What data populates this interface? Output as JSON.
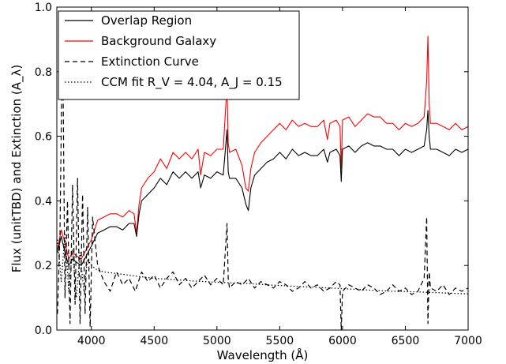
{
  "chart_data": {
    "type": "line",
    "xlabel": "Wavelength (Å)",
    "ylabel": "Flux (unitTBD) and Extinction (A_λ)",
    "xlim": [
      3725,
      7000
    ],
    "ylim": [
      0.0,
      1.0
    ],
    "x_ticks": [
      "4000",
      "4500",
      "5000",
      "5500",
      "6000",
      "6500",
      "7000"
    ],
    "y_ticks": [
      "0.0",
      "0.2",
      "0.4",
      "0.6",
      "0.8",
      "1.0"
    ],
    "grid": false,
    "legend_position": "top-left",
    "legend": [
      {
        "label": "Overlap Region",
        "style": "solid",
        "color": "#000000"
      },
      {
        "label": "Background Galaxy",
        "style": "solid",
        "color": "#ff0000"
      },
      {
        "label": "Extinction Curve",
        "style": "dashed",
        "color": "#000000"
      },
      {
        "label": "CCM fit R_V = 4.04, A_J = 0.15",
        "style": "dotted",
        "color": "#000000"
      }
    ],
    "series": [
      {
        "name": "Background Galaxy",
        "color": "#ff0000",
        "style": "solid",
        "x": [
          3730,
          3760,
          3790,
          3820,
          3850,
          3880,
          3920,
          3960,
          4000,
          4050,
          4100,
          4150,
          4200,
          4250,
          4300,
          4340,
          4360,
          4380,
          4400,
          4450,
          4500,
          4550,
          4600,
          4650,
          4700,
          4750,
          4800,
          4850,
          4870,
          4900,
          4950,
          5000,
          5050,
          5080,
          5090,
          5100,
          5150,
          5200,
          5230,
          5250,
          5270,
          5300,
          5350,
          5400,
          5450,
          5500,
          5550,
          5600,
          5650,
          5700,
          5750,
          5800,
          5850,
          5880,
          5900,
          5950,
          5980,
          5990,
          6000,
          6050,
          6100,
          6150,
          6200,
          6250,
          6300,
          6350,
          6400,
          6450,
          6500,
          6550,
          6600,
          6650,
          6670,
          6680,
          6690,
          6700,
          6720,
          6750,
          6800,
          6850,
          6900,
          6950,
          7000
        ],
        "y": [
          0.25,
          0.31,
          0.27,
          0.22,
          0.24,
          0.23,
          0.22,
          0.25,
          0.28,
          0.34,
          0.35,
          0.36,
          0.36,
          0.35,
          0.37,
          0.36,
          0.3,
          0.39,
          0.44,
          0.47,
          0.49,
          0.53,
          0.5,
          0.55,
          0.53,
          0.55,
          0.53,
          0.56,
          0.48,
          0.55,
          0.54,
          0.56,
          0.56,
          0.76,
          0.58,
          0.55,
          0.56,
          0.51,
          0.44,
          0.43,
          0.5,
          0.55,
          0.58,
          0.6,
          0.62,
          0.64,
          0.62,
          0.65,
          0.63,
          0.64,
          0.63,
          0.63,
          0.65,
          0.59,
          0.64,
          0.65,
          0.63,
          0.5,
          0.65,
          0.66,
          0.63,
          0.65,
          0.67,
          0.66,
          0.66,
          0.64,
          0.64,
          0.62,
          0.64,
          0.63,
          0.64,
          0.66,
          0.77,
          0.91,
          0.7,
          0.64,
          0.64,
          0.64,
          0.63,
          0.62,
          0.64,
          0.62,
          0.63
        ]
      },
      {
        "name": "Overlap Region",
        "color": "#000000",
        "style": "solid",
        "x": [
          3730,
          3760,
          3790,
          3820,
          3850,
          3880,
          3920,
          3960,
          4000,
          4050,
          4100,
          4150,
          4200,
          4250,
          4300,
          4340,
          4360,
          4380,
          4400,
          4450,
          4500,
          4550,
          4600,
          4650,
          4700,
          4750,
          4800,
          4850,
          4870,
          4900,
          4950,
          5000,
          5050,
          5080,
          5090,
          5100,
          5150,
          5200,
          5230,
          5250,
          5270,
          5300,
          5350,
          5400,
          5450,
          5500,
          5550,
          5600,
          5650,
          5700,
          5750,
          5800,
          5850,
          5880,
          5900,
          5950,
          5980,
          5990,
          6000,
          6050,
          6100,
          6150,
          6200,
          6250,
          6300,
          6350,
          6400,
          6450,
          6500,
          6550,
          6600,
          6650,
          6670,
          6680,
          6690,
          6700,
          6720,
          6750,
          6800,
          6850,
          6900,
          6950,
          7000
        ],
        "y": [
          0.24,
          0.29,
          0.24,
          0.2,
          0.22,
          0.21,
          0.2,
          0.23,
          0.26,
          0.3,
          0.31,
          0.32,
          0.32,
          0.31,
          0.33,
          0.33,
          0.29,
          0.36,
          0.4,
          0.42,
          0.44,
          0.47,
          0.45,
          0.49,
          0.47,
          0.49,
          0.47,
          0.49,
          0.44,
          0.48,
          0.47,
          0.49,
          0.48,
          0.62,
          0.49,
          0.47,
          0.47,
          0.44,
          0.39,
          0.37,
          0.44,
          0.48,
          0.5,
          0.52,
          0.53,
          0.55,
          0.53,
          0.56,
          0.54,
          0.55,
          0.54,
          0.54,
          0.56,
          0.52,
          0.55,
          0.56,
          0.54,
          0.46,
          0.56,
          0.57,
          0.55,
          0.57,
          0.58,
          0.57,
          0.57,
          0.56,
          0.56,
          0.54,
          0.56,
          0.55,
          0.56,
          0.57,
          0.62,
          0.68,
          0.6,
          0.56,
          0.56,
          0.56,
          0.55,
          0.54,
          0.56,
          0.55,
          0.56
        ]
      },
      {
        "name": "Extinction Curve",
        "color": "#000000",
        "style": "dashed",
        "x": [
          3730,
          3750,
          3770,
          3790,
          3810,
          3830,
          3850,
          3870,
          3890,
          3910,
          3930,
          3950,
          3970,
          3990,
          4010,
          4050,
          4100,
          4150,
          4200,
          4250,
          4300,
          4350,
          4400,
          4450,
          4500,
          4550,
          4600,
          4650,
          4700,
          4750,
          4800,
          4850,
          4900,
          4950,
          5000,
          5050,
          5080,
          5090,
          5100,
          5150,
          5200,
          5250,
          5300,
          5350,
          5400,
          5450,
          5500,
          5550,
          5600,
          5650,
          5700,
          5750,
          5800,
          5850,
          5900,
          5950,
          5980,
          5990,
          6000,
          6050,
          6100,
          6150,
          6200,
          6250,
          6300,
          6350,
          6400,
          6450,
          6500,
          6550,
          6600,
          6650,
          6670,
          6680,
          6690,
          6700,
          6750,
          6800,
          6850,
          6900,
          6950,
          7000
        ],
        "y": [
          0.05,
          0.3,
          0.95,
          0.1,
          0.4,
          0.02,
          0.45,
          0.08,
          0.47,
          0.02,
          0.42,
          0.05,
          0.38,
          0.01,
          0.35,
          0.2,
          0.15,
          0.12,
          0.18,
          0.14,
          0.16,
          0.12,
          0.18,
          0.15,
          0.17,
          0.13,
          0.16,
          0.18,
          0.14,
          0.16,
          0.13,
          0.15,
          0.17,
          0.14,
          0.16,
          0.14,
          0.33,
          0.16,
          0.13,
          0.15,
          0.14,
          0.16,
          0.13,
          0.15,
          0.14,
          0.13,
          0.15,
          0.14,
          0.12,
          0.13,
          0.15,
          0.13,
          0.14,
          0.12,
          0.13,
          0.15,
          0.14,
          0.0,
          0.12,
          0.14,
          0.13,
          0.12,
          0.14,
          0.13,
          0.11,
          0.12,
          0.14,
          0.12,
          0.13,
          0.11,
          0.12,
          0.16,
          0.35,
          0.02,
          0.18,
          0.13,
          0.12,
          0.14,
          0.11,
          0.13,
          0.12,
          0.13
        ]
      },
      {
        "name": "CCM fit R_V = 4.04, A_J = 0.15",
        "color": "#000000",
        "style": "dotted",
        "x": [
          3730,
          3760,
          3790,
          3820,
          3850,
          3880,
          3910,
          3940,
          3970,
          4000,
          4050,
          4100,
          4200,
          4300,
          4400,
          4500,
          4600,
          4700,
          4800,
          4900,
          5000,
          5200,
          5400,
          5600,
          5800,
          6000,
          6200,
          6400,
          6600,
          6800,
          7000
        ],
        "y": [
          0.28,
          0.15,
          0.3,
          0.12,
          0.25,
          0.1,
          0.24,
          0.12,
          0.22,
          0.2,
          0.185,
          0.18,
          0.175,
          0.17,
          0.165,
          0.16,
          0.158,
          0.155,
          0.152,
          0.15,
          0.148,
          0.145,
          0.14,
          0.136,
          0.132,
          0.128,
          0.124,
          0.12,
          0.118,
          0.115,
          0.112
        ]
      }
    ]
  }
}
